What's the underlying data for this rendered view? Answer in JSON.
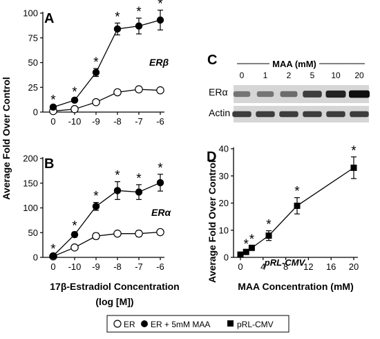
{
  "figure": {
    "shared_ylabel": "Average Fold Over Control",
    "shared_xlabel_line1": "17β-Estradiol Concentration",
    "shared_xlabel_line2": "(log [M])",
    "legend": [
      "ER",
      "ER + 5mM MAA",
      "pRL-CMV"
    ]
  },
  "chart_data": [
    {
      "panel": "A",
      "type": "line",
      "annotation": "ERβ",
      "categories": [
        "0",
        "-10",
        "-9",
        "-8",
        "-7",
        "-6"
      ],
      "ylim": [
        0,
        100
      ],
      "yticks": [
        0,
        25,
        50,
        75,
        100
      ],
      "series": [
        {
          "name": "ER",
          "marker": "open-circle",
          "values": [
            1,
            3,
            10,
            20,
            23,
            22
          ],
          "errors": [
            0.5,
            1,
            1.5,
            2,
            2,
            2
          ]
        },
        {
          "name": "ER + 5mM MAA",
          "marker": "filled-circle",
          "values": [
            5,
            12,
            40,
            84,
            87,
            93
          ],
          "errors": [
            1,
            2,
            4,
            6,
            8,
            10
          ]
        }
      ],
      "significance": [
        "*",
        "*",
        "*",
        "*",
        "*",
        "*"
      ]
    },
    {
      "panel": "B",
      "type": "line",
      "annotation": "ERα",
      "categories": [
        "0",
        "-10",
        "-9",
        "-8",
        "-7",
        "-6"
      ],
      "ylim": [
        0,
        200
      ],
      "yticks": [
        0,
        50,
        100,
        150,
        200
      ],
      "series": [
        {
          "name": "ER",
          "marker": "open-circle",
          "values": [
            2,
            20,
            43,
            48,
            48,
            51
          ],
          "errors": [
            1,
            3,
            6,
            4,
            6,
            4
          ]
        },
        {
          "name": "ER + 5mM MAA",
          "marker": "filled-circle",
          "values": [
            3,
            46,
            103,
            135,
            132,
            151
          ],
          "errors": [
            1,
            5,
            8,
            18,
            15,
            17
          ]
        }
      ],
      "significance": [
        "*",
        "*",
        "*",
        "*",
        "*",
        "*"
      ]
    },
    {
      "panel": "D",
      "type": "line",
      "annotation": "pRL-CMV",
      "xlabel": "MAA Concentration (mM)",
      "xlim": [
        0,
        20
      ],
      "xticks": [
        0,
        4,
        8,
        12,
        16,
        20
      ],
      "ylim": [
        0,
        40
      ],
      "yticks": [
        0,
        10,
        20,
        30,
        40
      ],
      "series": [
        {
          "name": "pRL-CMV",
          "marker": "filled-square",
          "x": [
            0,
            1,
            2,
            5,
            10,
            20
          ],
          "values": [
            1,
            2,
            3.5,
            8,
            19,
            33
          ],
          "errors": [
            0.3,
            0.5,
            0.8,
            1.8,
            3,
            4
          ]
        }
      ],
      "significance": [
        "",
        "*",
        "*",
        "*",
        "*",
        "*"
      ]
    }
  ],
  "blot": {
    "panel": "C",
    "title": "MAA (mM)",
    "lanes": [
      "0",
      "1",
      "2",
      "5",
      "10",
      "20"
    ],
    "rows": [
      {
        "label": "ERα",
        "intensity": [
          0.45,
          0.45,
          0.5,
          0.75,
          0.9,
          1.0
        ]
      },
      {
        "label": "Actin",
        "intensity": [
          0.75,
          0.75,
          0.75,
          0.75,
          0.75,
          0.75
        ]
      }
    ]
  }
}
